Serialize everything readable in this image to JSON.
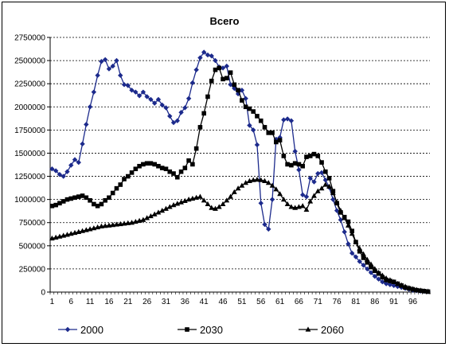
{
  "chart_data": {
    "type": "line",
    "title": "Всего",
    "xlabel": "",
    "ylabel": "",
    "ylim": [
      0,
      2750000
    ],
    "y_ticks": [
      "0",
      "250000",
      "500000",
      "750000",
      "1000000",
      "1250000",
      "1500000",
      "1750000",
      "2000000",
      "2250000",
      "2500000",
      "2750000"
    ],
    "x_ticks": [
      "1",
      "6",
      "11",
      "16",
      "21",
      "26",
      "31",
      "36",
      "41",
      "46",
      "51",
      "56",
      "61",
      "66",
      "71",
      "76",
      "81",
      "86",
      "91",
      "96"
    ],
    "grid": "horizontal",
    "legend_position": "bottom",
    "x": [
      1,
      2,
      3,
      4,
      5,
      6,
      7,
      8,
      9,
      10,
      11,
      12,
      13,
      14,
      15,
      16,
      17,
      18,
      19,
      20,
      21,
      22,
      23,
      24,
      25,
      26,
      27,
      28,
      29,
      30,
      31,
      32,
      33,
      34,
      35,
      36,
      37,
      38,
      39,
      40,
      41,
      42,
      43,
      44,
      45,
      46,
      47,
      48,
      49,
      50,
      51,
      52,
      53,
      54,
      55,
      56,
      57,
      58,
      59,
      60,
      61,
      62,
      63,
      64,
      65,
      66,
      67,
      68,
      69,
      70,
      71,
      72,
      73,
      74,
      75,
      76,
      77,
      78,
      79,
      80,
      81,
      82,
      83,
      84,
      85,
      86,
      87,
      88,
      89,
      90,
      91,
      92,
      93,
      94,
      95,
      96,
      97,
      98,
      99,
      100
    ],
    "series": [
      {
        "name": "2000",
        "color": "#1c2a8c",
        "marker": "diamond",
        "values": [
          1330000,
          1310000,
          1270000,
          1250000,
          1300000,
          1370000,
          1430000,
          1400000,
          1600000,
          1810000,
          2000000,
          2160000,
          2340000,
          2490000,
          2510000,
          2410000,
          2440000,
          2500000,
          2340000,
          2240000,
          2230000,
          2180000,
          2160000,
          2120000,
          2160000,
          2110000,
          2080000,
          2040000,
          2080000,
          2020000,
          1990000,
          1900000,
          1830000,
          1850000,
          1940000,
          1990000,
          2090000,
          2260000,
          2400000,
          2530000,
          2590000,
          2560000,
          2550000,
          2500000,
          2430000,
          2420000,
          2440000,
          2240000,
          2200000,
          2140000,
          2180000,
          2090000,
          1800000,
          1750000,
          1590000,
          960000,
          730000,
          680000,
          1000000,
          1650000,
          1670000,
          1860000,
          1870000,
          1850000,
          1520000,
          1320000,
          1050000,
          1030000,
          1230000,
          1190000,
          1280000,
          1290000,
          1210000,
          1130000,
          1000000,
          880000,
          780000,
          650000,
          520000,
          420000,
          380000,
          330000,
          290000,
          250000,
          210000,
          170000,
          140000,
          110000,
          90000,
          80000,
          70000,
          60000,
          50000,
          40000,
          30000,
          20000,
          15000,
          10000,
          8000,
          5000
        ]
      },
      {
        "name": "2030",
        "color": "#000000",
        "marker": "square",
        "values": [
          930000,
          940000,
          960000,
          980000,
          1000000,
          1010000,
          1020000,
          1030000,
          1040000,
          1020000,
          990000,
          950000,
          930000,
          950000,
          990000,
          1020000,
          1070000,
          1120000,
          1160000,
          1220000,
          1250000,
          1290000,
          1330000,
          1360000,
          1380000,
          1390000,
          1390000,
          1380000,
          1360000,
          1340000,
          1330000,
          1300000,
          1280000,
          1240000,
          1300000,
          1340000,
          1420000,
          1380000,
          1550000,
          1780000,
          1930000,
          2110000,
          2280000,
          2400000,
          2420000,
          2300000,
          2310000,
          2370000,
          2240000,
          2180000,
          2070000,
          2000000,
          1980000,
          1950000,
          1900000,
          1850000,
          1780000,
          1720000,
          1720000,
          1620000,
          1640000,
          1470000,
          1380000,
          1370000,
          1390000,
          1380000,
          1360000,
          1460000,
          1470000,
          1490000,
          1470000,
          1400000,
          1300000,
          1230000,
          1090000,
          960000,
          860000,
          810000,
          760000,
          660000,
          540000,
          440000,
          370000,
          320000,
          270000,
          230000,
          200000,
          160000,
          130000,
          120000,
          110000,
          90000,
          70000,
          50000,
          40000,
          30000,
          20000,
          15000,
          10000,
          5000
        ]
      },
      {
        "name": "2060",
        "color": "#000000",
        "marker": "triangle",
        "values": [
          580000,
          590000,
          600000,
          610000,
          620000,
          630000,
          640000,
          650000,
          660000,
          670000,
          680000,
          690000,
          700000,
          710000,
          715000,
          720000,
          725000,
          730000,
          735000,
          740000,
          745000,
          750000,
          760000,
          770000,
          780000,
          800000,
          820000,
          840000,
          860000,
          880000,
          900000,
          920000,
          940000,
          955000,
          970000,
          985000,
          1000000,
          1010000,
          1020000,
          1030000,
          990000,
          950000,
          910000,
          900000,
          920000,
          950000,
          990000,
          1030000,
          1080000,
          1120000,
          1150000,
          1180000,
          1200000,
          1210000,
          1215000,
          1210000,
          1200000,
          1180000,
          1150000,
          1110000,
          1060000,
          1000000,
          950000,
          920000,
          910000,
          920000,
          930000,
          890000,
          980000,
          1040000,
          1090000,
          1120000,
          1160000,
          1140000,
          1070000,
          970000,
          880000,
          800000,
          720000,
          630000,
          540000,
          470000,
          410000,
          350000,
          300000,
          250000,
          210000,
          180000,
          150000,
          130000,
          110000,
          90000,
          75000,
          60000,
          45000,
          35000,
          25000,
          18000,
          12000,
          8000
        ]
      }
    ]
  }
}
